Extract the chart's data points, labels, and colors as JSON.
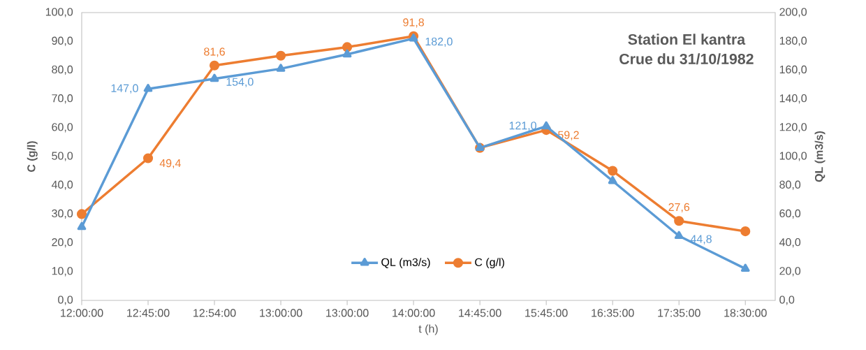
{
  "chart_data": {
    "type": "line",
    "title": "Station El kantra",
    "subtitle": "Crue du 31/10/1982",
    "xlabel": "t (h)",
    "ylabel": "C (g/l)",
    "y2label": "QL (m3/s)",
    "categories": [
      "12:00:00",
      "12:45:00",
      "12:54:00",
      "13:00:00",
      "13:00:00",
      "14:00:00",
      "14:45:00",
      "15:45:00",
      "16:35:00",
      "17:35:00",
      "18:30:00"
    ],
    "series": [
      {
        "name": "QL (m3/s)",
        "color": "#5b9bd5",
        "axis": "y2",
        "marker": "triangle",
        "values": [
          51,
          147.0,
          154.0,
          161,
          171,
          182.0,
          106,
          121.0,
          83,
          44.8,
          22
        ],
        "value_labels": [
          null,
          "147,0",
          "154,0",
          null,
          null,
          "182,0",
          null,
          "121,0",
          null,
          "44,8",
          null
        ]
      },
      {
        "name": "C (g/l)",
        "color": "#ed7d31",
        "axis": "y",
        "marker": "circle",
        "values": [
          30,
          49.4,
          81.6,
          85,
          88,
          91.8,
          53,
          59.2,
          45,
          27.6,
          24
        ],
        "value_labels": [
          null,
          "49,4",
          "81,6",
          null,
          null,
          "91,8",
          null,
          "59,2",
          null,
          "27,6",
          null
        ]
      }
    ],
    "ylim": [
      0,
      100
    ],
    "yticks": [
      {
        "value": 0,
        "label": "0,0"
      },
      {
        "value": 10,
        "label": "10,0"
      },
      {
        "value": 20,
        "label": "20,0"
      },
      {
        "value": 30,
        "label": "30,0"
      },
      {
        "value": 40,
        "label": "40,0"
      },
      {
        "value": 50,
        "label": "50,0"
      },
      {
        "value": 60,
        "label": "60,0"
      },
      {
        "value": 70,
        "label": "70,0"
      },
      {
        "value": 80,
        "label": "80,0"
      },
      {
        "value": 90,
        "label": "90,0"
      },
      {
        "value": 100,
        "label": "100,0"
      }
    ],
    "y2lim": [
      0,
      200
    ],
    "y2ticks": [
      {
        "value": 0,
        "label": "0,0"
      },
      {
        "value": 20,
        "label": "20,0"
      },
      {
        "value": 40,
        "label": "40,0"
      },
      {
        "value": 60,
        "label": "60,0"
      },
      {
        "value": 80,
        "label": "80,0"
      },
      {
        "value": 100,
        "label": "100,0"
      },
      {
        "value": 120,
        "label": "120,0"
      },
      {
        "value": 140,
        "label": "140,0"
      },
      {
        "value": 160,
        "label": "160,0"
      },
      {
        "value": 180,
        "label": "180,0"
      },
      {
        "value": 200,
        "label": "200,0"
      }
    ],
    "grid": false,
    "legend": "bottom",
    "line_style": "solid"
  }
}
